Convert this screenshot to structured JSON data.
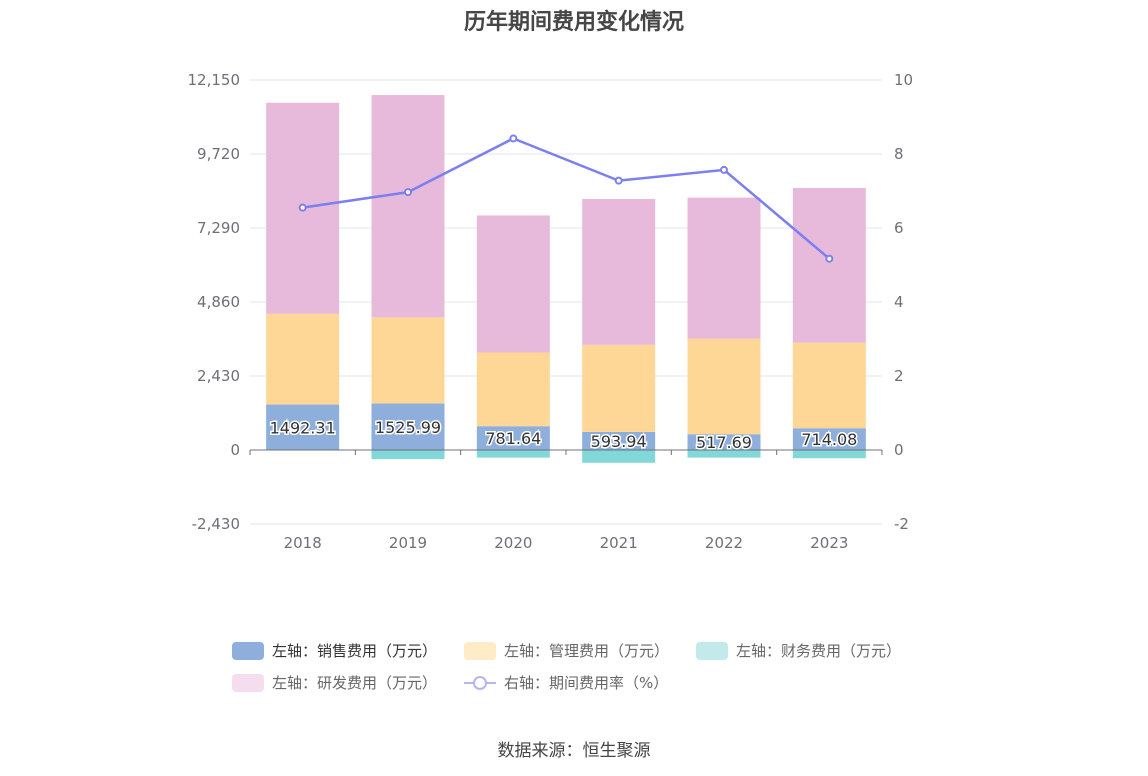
{
  "chart_data": {
    "type": "bar",
    "stacked": true,
    "title": "历年期间费用变化情况",
    "categories": [
      "2018",
      "2019",
      "2020",
      "2021",
      "2022",
      "2023"
    ],
    "y_left": {
      "min": -2430,
      "max": 12150,
      "ticks": [
        "-2,430",
        "0",
        "2,430",
        "4,860",
        "7,290",
        "9,720",
        "12,150"
      ],
      "tick_values": [
        -2430,
        0,
        2430,
        4860,
        7290,
        9720,
        12150
      ]
    },
    "y_right": {
      "min": -2,
      "max": 10,
      "ticks": [
        "-2",
        "0",
        "2",
        "4",
        "6",
        "8",
        "10"
      ],
      "tick_values": [
        -2,
        0,
        2,
        4,
        6,
        8,
        10
      ]
    },
    "series": [
      {
        "name": "左轴：销售费用（万元）",
        "axis": "left",
        "color": "#8eaedb",
        "values": [
          1492.31,
          1525.99,
          781.64,
          593.94,
          517.69,
          714.08
        ],
        "labels": [
          "1492.31",
          "1525.99",
          "781.64",
          "593.94",
          "517.69",
          "714.08"
        ]
      },
      {
        "name": "左轴：管理费用（万元）",
        "axis": "left",
        "color": "#fed797",
        "values": [
          2980,
          2830,
          2420,
          2860,
          3140,
          2810
        ]
      },
      {
        "name": "左轴：财务费用（万元）",
        "axis": "left",
        "color": "#82d7d8",
        "values": [
          0,
          -300,
          -250,
          -420,
          -250,
          -270
        ]
      },
      {
        "name": "左轴：研发费用（万元）",
        "axis": "left",
        "color": "#e7b9da",
        "values": [
          6930,
          7300,
          4500,
          4790,
          4630,
          5080
        ]
      },
      {
        "name": "右轴：期间费用率（%）",
        "axis": "right",
        "type": "line",
        "color": "#7b7ff0",
        "values": [
          6.55,
          6.97,
          8.42,
          7.28,
          7.57,
          5.17
        ]
      }
    ],
    "legend_position": "bottom",
    "grid": true
  },
  "legend": [
    {
      "label": "左轴：销售费用（万元）",
      "color": "#8eaedb",
      "kind": "bar"
    },
    {
      "label": "左轴：管理费用（万元）",
      "color": "#feebc7",
      "kind": "bar"
    },
    {
      "label": "左轴：财务费用（万元）",
      "color": "#c2eaeb",
      "kind": "bar"
    },
    {
      "label": "左轴：研发费用（万元）",
      "color": "#f4ddee",
      "kind": "bar"
    },
    {
      "label": "右轴：期间费用率（%）",
      "color": "#b4b6f2",
      "kind": "line"
    }
  ],
  "source": "数据来源：恒生聚源"
}
